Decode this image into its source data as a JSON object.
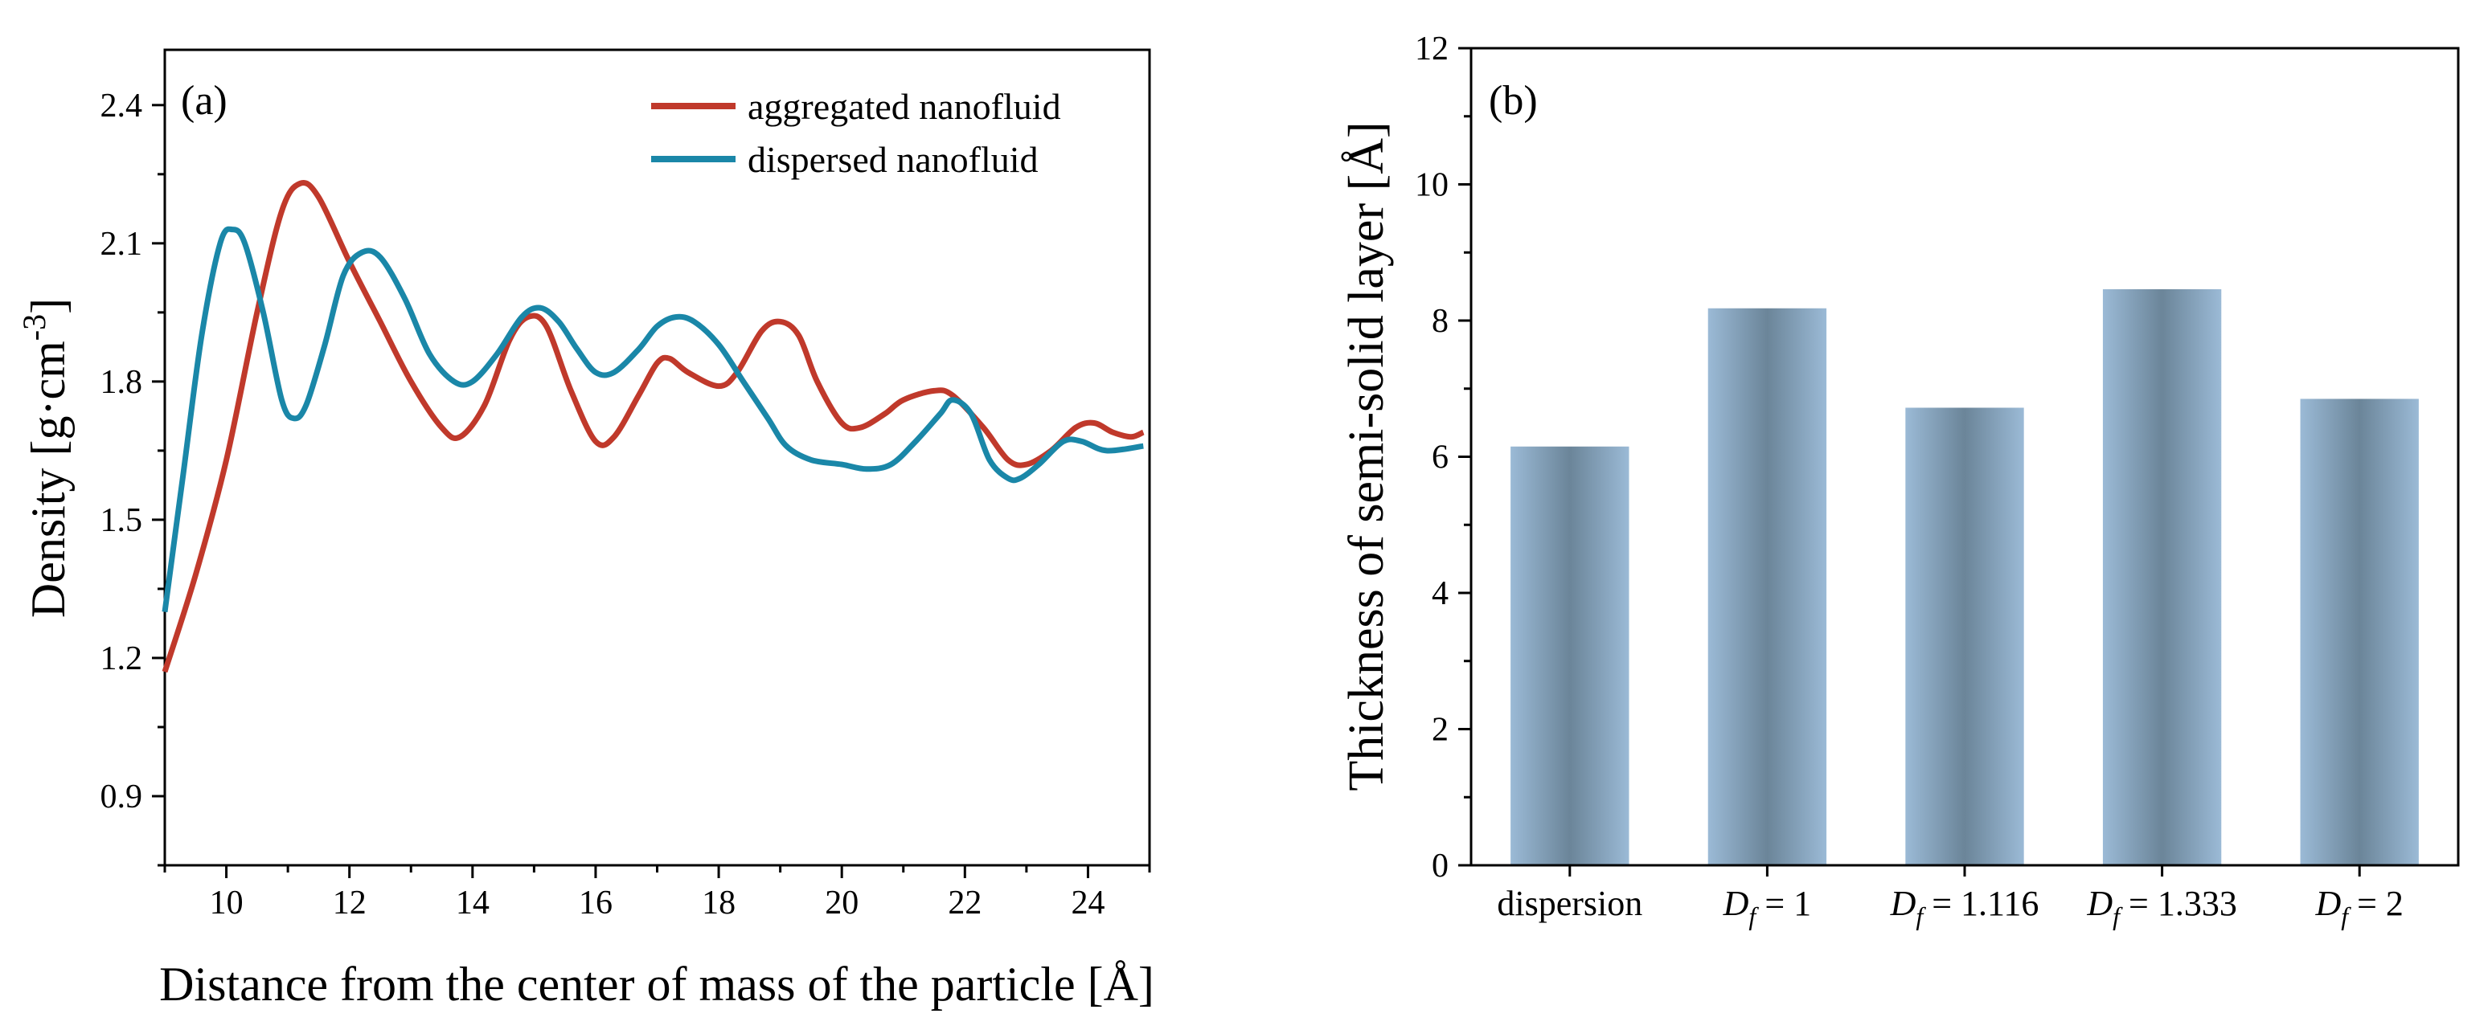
{
  "chart_data": [
    {
      "type": "line",
      "panel_label": "(a)",
      "xlabel": "Distance from the center of mass of the particle [Å]",
      "ylabel": "Density [g·cm-3]",
      "ylabel_main": "Density [g·cm",
      "ylabel_sup": "-3",
      "ylabel_end": "]",
      "xlim": [
        9,
        25
      ],
      "ylim": [
        0.75,
        2.52
      ],
      "x_ticks": [
        10,
        12,
        14,
        16,
        18,
        20,
        22,
        24
      ],
      "y_ticks": [
        0.9,
        1.2,
        1.5,
        1.8,
        2.1,
        2.4
      ],
      "y_tick_labels": [
        "0.9",
        "1.2",
        "1.5",
        "1.8",
        "2.1",
        "2.4"
      ],
      "grid": false,
      "legend_position": "top-right",
      "series": [
        {
          "name": "aggregated nanofluid",
          "color": "#c0392b",
          "points": [
            [
              9.0,
              1.17
            ],
            [
              9.5,
              1.38
            ],
            [
              10.0,
              1.63
            ],
            [
              10.5,
              1.95
            ],
            [
              10.9,
              2.17
            ],
            [
              11.2,
              2.23
            ],
            [
              11.5,
              2.2
            ],
            [
              12.0,
              2.06
            ],
            [
              12.5,
              1.93
            ],
            [
              13.0,
              1.8
            ],
            [
              13.5,
              1.7
            ],
            [
              13.8,
              1.68
            ],
            [
              14.2,
              1.75
            ],
            [
              14.6,
              1.89
            ],
            [
              14.9,
              1.94
            ],
            [
              15.2,
              1.92
            ],
            [
              15.6,
              1.78
            ],
            [
              16.0,
              1.67
            ],
            [
              16.3,
              1.68
            ],
            [
              16.7,
              1.77
            ],
            [
              17.0,
              1.84
            ],
            [
              17.2,
              1.85
            ],
            [
              17.5,
              1.82
            ],
            [
              18.0,
              1.79
            ],
            [
              18.3,
              1.82
            ],
            [
              18.7,
              1.91
            ],
            [
              19.0,
              1.93
            ],
            [
              19.3,
              1.9
            ],
            [
              19.6,
              1.8
            ],
            [
              20.0,
              1.71
            ],
            [
              20.3,
              1.7
            ],
            [
              20.7,
              1.73
            ],
            [
              21.0,
              1.76
            ],
            [
              21.5,
              1.78
            ],
            [
              21.8,
              1.77
            ],
            [
              22.3,
              1.7
            ],
            [
              22.7,
              1.63
            ],
            [
              23.0,
              1.62
            ],
            [
              23.4,
              1.65
            ],
            [
              23.8,
              1.7
            ],
            [
              24.1,
              1.71
            ],
            [
              24.4,
              1.69
            ],
            [
              24.7,
              1.68
            ],
            [
              24.9,
              1.69
            ]
          ]
        },
        {
          "name": "dispersed nanofluid",
          "color": "#1a87a8",
          "points": [
            [
              9.0,
              1.3
            ],
            [
              9.3,
              1.6
            ],
            [
              9.6,
              1.9
            ],
            [
              9.9,
              2.1
            ],
            [
              10.1,
              2.13
            ],
            [
              10.3,
              2.1
            ],
            [
              10.6,
              1.95
            ],
            [
              10.9,
              1.76
            ],
            [
              11.1,
              1.72
            ],
            [
              11.3,
              1.75
            ],
            [
              11.6,
              1.88
            ],
            [
              11.9,
              2.03
            ],
            [
              12.2,
              2.08
            ],
            [
              12.5,
              2.07
            ],
            [
              12.9,
              1.98
            ],
            [
              13.3,
              1.86
            ],
            [
              13.7,
              1.8
            ],
            [
              14.0,
              1.8
            ],
            [
              14.4,
              1.86
            ],
            [
              14.8,
              1.94
            ],
            [
              15.1,
              1.96
            ],
            [
              15.4,
              1.93
            ],
            [
              15.7,
              1.87
            ],
            [
              16.0,
              1.82
            ],
            [
              16.3,
              1.82
            ],
            [
              16.7,
              1.87
            ],
            [
              17.0,
              1.92
            ],
            [
              17.3,
              1.94
            ],
            [
              17.6,
              1.93
            ],
            [
              18.0,
              1.88
            ],
            [
              18.4,
              1.8
            ],
            [
              18.8,
              1.72
            ],
            [
              19.1,
              1.66
            ],
            [
              19.5,
              1.63
            ],
            [
              20.0,
              1.62
            ],
            [
              20.4,
              1.61
            ],
            [
              20.8,
              1.62
            ],
            [
              21.2,
              1.67
            ],
            [
              21.6,
              1.73
            ],
            [
              21.8,
              1.76
            ],
            [
              22.1,
              1.73
            ],
            [
              22.4,
              1.63
            ],
            [
              22.7,
              1.59
            ],
            [
              22.9,
              1.59
            ],
            [
              23.2,
              1.62
            ],
            [
              23.6,
              1.67
            ],
            [
              23.9,
              1.67
            ],
            [
              24.3,
              1.65
            ],
            [
              24.9,
              1.66
            ]
          ]
        }
      ]
    },
    {
      "type": "bar",
      "panel_label": "(b)",
      "xlabel": "",
      "ylabel": "Thickness of semi-solid layer [Å]",
      "ylim": [
        0,
        12
      ],
      "y_ticks": [
        0,
        2,
        4,
        6,
        8,
        10,
        12
      ],
      "grid": false,
      "bar_color": "#7f9fbd",
      "categories": [
        {
          "label": "dispersion",
          "sub": "",
          "tail": ""
        },
        {
          "label": "D",
          "sub": "f",
          "tail": " = 1"
        },
        {
          "label": "D",
          "sub": "f",
          "tail": " = 1.116"
        },
        {
          "label": "D",
          "sub": "f",
          "tail": " = 1.333"
        },
        {
          "label": "D",
          "sub": "f",
          "tail": " = 2"
        }
      ],
      "values": [
        6.15,
        8.18,
        6.72,
        8.46,
        6.85
      ]
    }
  ]
}
